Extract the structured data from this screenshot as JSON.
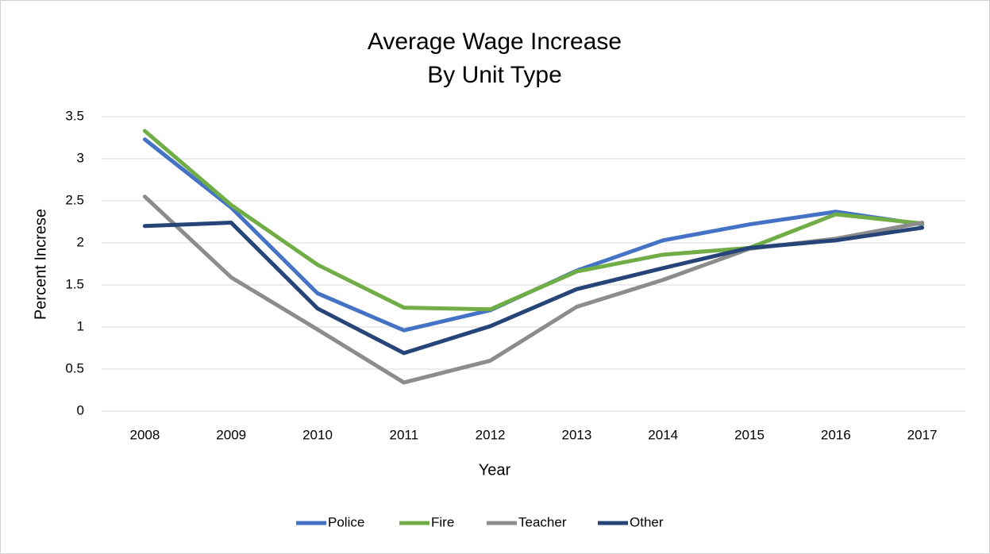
{
  "chart_data": {
    "type": "line",
    "title": [
      "Average Wage Increase",
      "By Unit Type"
    ],
    "x_label": "Year",
    "y_label": "Percent Increse",
    "categories": [
      "2008",
      "2009",
      "2010",
      "2011",
      "2012",
      "2013",
      "2014",
      "2015",
      "2016",
      "2017"
    ],
    "series": [
      {
        "name": "Police",
        "color": "#4472c4",
        "values": [
          3.23,
          2.42,
          1.4,
          0.96,
          1.2,
          1.67,
          2.03,
          2.22,
          2.37,
          2.22
        ]
      },
      {
        "name": "Fire",
        "color": "#70ad47",
        "values": [
          3.33,
          2.45,
          1.74,
          1.23,
          1.21,
          1.66,
          1.86,
          1.94,
          2.34,
          2.23
        ]
      },
      {
        "name": "Teacher",
        "color": "#8c8c8c",
        "values": [
          2.55,
          1.59,
          0.97,
          0.34,
          0.6,
          1.24,
          1.56,
          1.93,
          2.05,
          2.24
        ]
      },
      {
        "name": "Other",
        "color": "#264478",
        "values": [
          2.2,
          2.24,
          1.22,
          0.69,
          1.01,
          1.45,
          1.7,
          1.94,
          2.03,
          2.18
        ]
      }
    ],
    "ylim": [
      0,
      3.5
    ],
    "yticks": [
      0,
      0.5,
      1,
      1.5,
      2,
      2.5,
      3,
      3.5
    ],
    "grid": true,
    "legend": "bottom"
  }
}
